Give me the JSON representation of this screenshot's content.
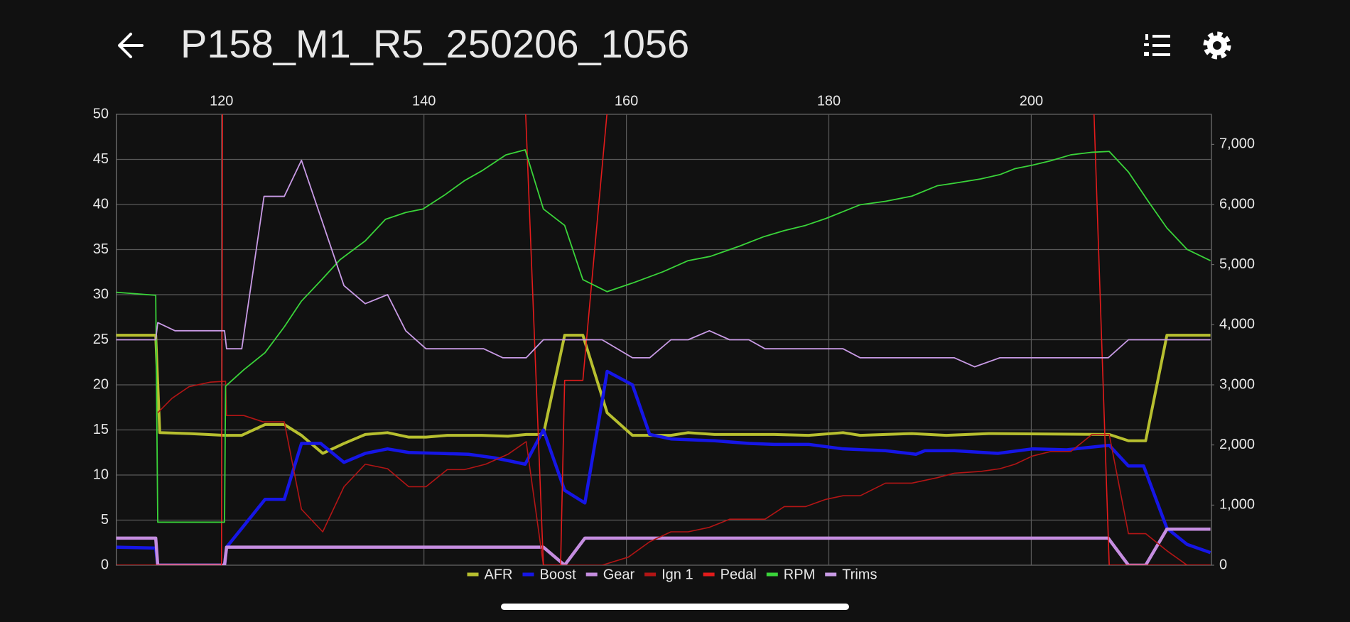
{
  "chart_data": {
    "type": "line",
    "title": "P158_M1_R5_250206_1056",
    "xlim": [
      109.6,
      217.8
    ],
    "xticks": [
      120,
      140,
      160,
      180,
      200
    ],
    "ylim": [
      0,
      50
    ],
    "yticks": [
      0,
      5,
      10,
      15,
      20,
      25,
      30,
      35,
      40,
      45,
      50
    ],
    "y2lim": [
      0,
      7500
    ],
    "y2ticks": [
      0,
      {
        "value": 1000,
        "label": "1,000"
      },
      {
        "value": 2000,
        "label": "2,000"
      },
      {
        "value": 3000,
        "label": "3,000"
      },
      {
        "value": 4000,
        "label": "4,000"
      },
      {
        "value": 5000,
        "label": "5,000"
      },
      {
        "value": 6000,
        "label": "6,000"
      },
      {
        "value": 7000,
        "label": "7,000"
      }
    ],
    "grid": true,
    "legend": "bottom",
    "series": [
      {
        "name": "AFR",
        "color": "#b7bf2f",
        "x": [
          109.6,
          113.5,
          113.9,
          116.8,
          120.3,
          122,
          124.3,
          126.2,
          127.9,
          130,
          132.1,
          134.2,
          136.4,
          138.5,
          140.2,
          142.3,
          145.7,
          148.3,
          150.1,
          151.8,
          153.9,
          155.7,
          158.1,
          160.6,
          164.4,
          166.1,
          168.7,
          174.6,
          178,
          181.4,
          183.1,
          188.2,
          191.6,
          195.8,
          207.7,
          209.6,
          211.3,
          213.4,
          217.7
        ],
        "values": [
          25.5,
          25.5,
          14.7,
          14.6,
          14.4,
          14.4,
          15.6,
          15.6,
          14.4,
          12.4,
          13.5,
          14.5,
          14.7,
          14.2,
          14.2,
          14.4,
          14.4,
          14.3,
          14.5,
          14.5,
          25.5,
          25.5,
          16.9,
          14.4,
          14.4,
          14.7,
          14.5,
          14.5,
          14.4,
          14.7,
          14.4,
          14.6,
          14.4,
          14.6,
          14.5,
          13.8,
          13.8,
          25.5,
          25.5
        ]
      },
      {
        "name": "Boost",
        "color": "#1616e6",
        "x": [
          109.6,
          113.5,
          113.7,
          120.3,
          120.5,
          122.3,
          124.3,
          126.2,
          127.9,
          129.8,
          132.1,
          134.2,
          136.4,
          138.5,
          141.5,
          144.4,
          147,
          150,
          151.8,
          153.9,
          155.9,
          158.1,
          160.6,
          162.3,
          164.4,
          168.7,
          172.1,
          174.6,
          178,
          181.4,
          185.6,
          188.6,
          189.5,
          192.4,
          196.7,
          200.1,
          203.5,
          207.7,
          209.6,
          211.1,
          213.4,
          215.4,
          217.7
        ],
        "values": [
          2.0,
          1.9,
          0,
          0,
          2.0,
          4.5,
          7.3,
          7.3,
          13.5,
          13.5,
          11.4,
          12.4,
          12.9,
          12.5,
          12.4,
          12.3,
          11.9,
          11.2,
          15,
          8.3,
          6.9,
          21.5,
          20,
          14.5,
          14,
          13.8,
          13.5,
          13.4,
          13.4,
          12.9,
          12.7,
          12.3,
          12.7,
          12.7,
          12.4,
          12.9,
          12.8,
          13.3,
          11.0,
          11.0,
          4.1,
          2.3,
          1.4
        ]
      },
      {
        "name": "Gear",
        "color": "#c58de0",
        "x": [
          109.6,
          113.5,
          113.7,
          120.3,
          120.5,
          151.8,
          153.9,
          155.9,
          207.6,
          209.6,
          211.3,
          213.4,
          217.7
        ],
        "values": [
          3,
          3,
          0,
          0,
          2,
          2,
          0,
          3,
          3,
          0,
          0,
          4,
          4
        ]
      },
      {
        "name": "Ign 1",
        "color": "#b31515",
        "x": [
          113.7,
          115.1,
          116.8,
          118.9,
          120.4,
          120.5,
          122.2,
          124.1,
          126.2,
          127.9,
          130,
          132.1,
          134.2,
          136.4,
          138.5,
          140.2,
          142.3,
          144,
          146.1,
          148.3,
          150.1,
          151.8,
          157.6,
          160.2,
          162.3,
          164.4,
          166.1,
          168.2,
          170.2,
          173.7,
          175.6,
          177.7,
          179.7,
          181.4,
          183.1,
          185.6,
          188.2,
          190.7,
          192.4,
          195,
          196.9,
          198.4,
          200.1,
          201.9,
          203.9,
          206,
          207.7,
          209.6,
          211.3,
          213.4,
          215.4,
          217.7
        ],
        "values": [
          16.9,
          18.5,
          19.8,
          20.3,
          20.4,
          16.6,
          16.6,
          15.9,
          15.9,
          6.2,
          3.7,
          8.7,
          11.2,
          10.7,
          8.7,
          8.7,
          10.6,
          10.6,
          11.2,
          12.3,
          13.7,
          0,
          0,
          0.9,
          2.6,
          3.7,
          3.7,
          4.2,
          5.1,
          5.1,
          6.5,
          6.5,
          7.3,
          7.7,
          7.7,
          9.1,
          9.1,
          9.7,
          10.2,
          10.4,
          10.7,
          11.2,
          12.1,
          12.6,
          12.6,
          14.5,
          14.5,
          3.5,
          3.5,
          1.6,
          0,
          0
        ]
      },
      {
        "name": "Pedal",
        "color": "#e31b1b",
        "x": [
          109.6,
          120.0,
          120.2,
          148.3,
          151.8,
          153.5,
          153.9,
          155.7,
          162.1,
          204.7,
          207.7,
          217.7
        ],
        "values": [
          0,
          0,
          100,
          100,
          0,
          0,
          20.5,
          20.5,
          100,
          100,
          0,
          0
        ]
      },
      {
        "name": "RPM",
        "color": "#3ad43a",
        "axis": "y2",
        "x": [
          109.6,
          113.5,
          113.7,
          120.3,
          120.4,
          122.2,
          124.3,
          126.2,
          127.9,
          129.9,
          131.7,
          134.2,
          136.2,
          138.2,
          139.9,
          142,
          144,
          145.8,
          148.1,
          150,
          151.8,
          153.9,
          155.7,
          158.1,
          160.6,
          163.6,
          166.1,
          168.3,
          171.2,
          173.6,
          175.6,
          177.7,
          179.7,
          181.4,
          183.1,
          185.6,
          188.2,
          190.7,
          192.4,
          195,
          196.9,
          198.4,
          200.1,
          201.9,
          203.9,
          206,
          207.7,
          209.6,
          211.5,
          213.4,
          215.4,
          217.7
        ],
        "values": [
          4540,
          4490,
          715,
          715,
          2977,
          3250,
          3535,
          3964,
          4393,
          4750,
          5080,
          5395,
          5753,
          5867,
          5925,
          6153,
          6396,
          6568,
          6826,
          6910,
          5925,
          5652,
          4750,
          4550,
          4693,
          4880,
          5066,
          5137,
          5309,
          5466,
          5566,
          5652,
          5767,
          5881,
          5996,
          6053,
          6139,
          6311,
          6354,
          6425,
          6497,
          6597,
          6654,
          6726,
          6826,
          6869,
          6883,
          6540,
          6067,
          5609,
          5252,
          5066
        ]
      },
      {
        "name": "Trims",
        "color": "#c99be6",
        "x": [
          109.6,
          113.5,
          113.7,
          115.4,
          120.3,
          120.5,
          122,
          124.2,
          126.2,
          127.9,
          132.1,
          134.2,
          136.4,
          138.2,
          140.2,
          145.9,
          147.8,
          150.1,
          151.8,
          157.6,
          160.6,
          162.3,
          164.4,
          166.1,
          168.2,
          170.2,
          172.1,
          173.7,
          181.4,
          183.1,
          192.4,
          194.4,
          196.9,
          207.6,
          209.6,
          217.7
        ],
        "values": [
          25,
          25,
          26.9,
          26,
          26,
          24,
          24,
          40.9,
          40.9,
          44.9,
          31,
          29,
          30,
          26,
          24,
          24,
          23,
          23,
          25,
          25,
          23,
          23,
          25,
          25,
          26,
          25,
          25,
          24,
          24,
          23,
          23,
          22,
          23,
          23,
          25,
          25
        ]
      }
    ]
  }
}
